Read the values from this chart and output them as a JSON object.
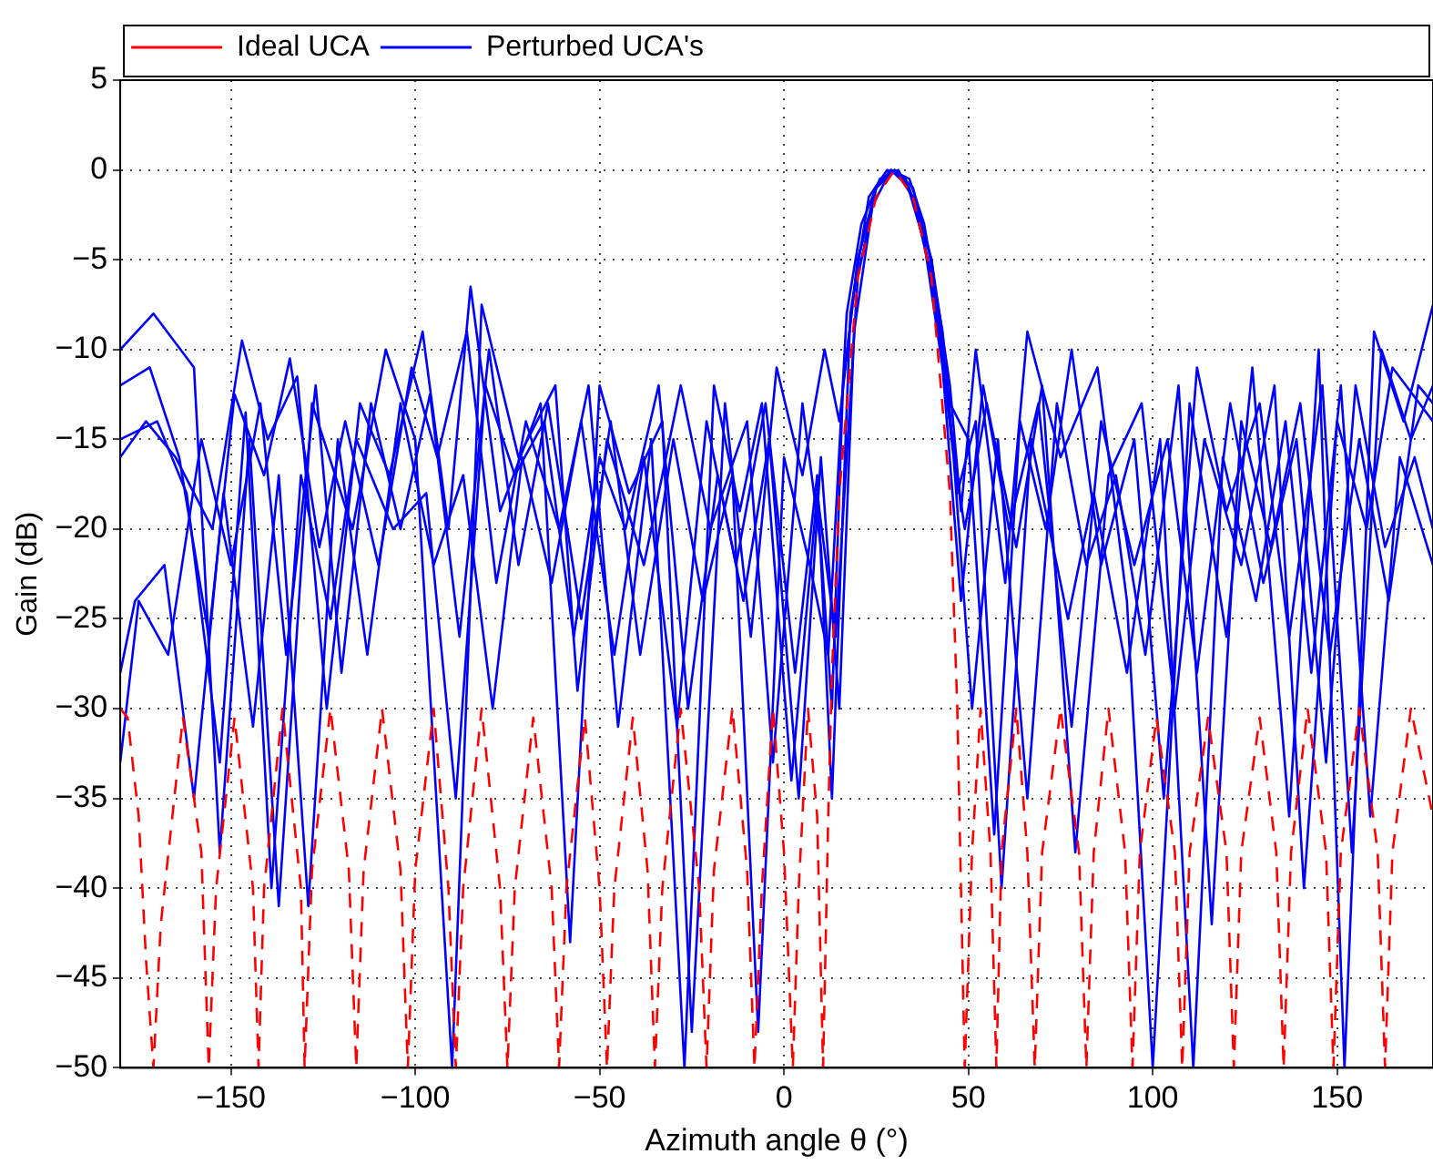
{
  "chart_data": {
    "type": "line",
    "xlabel": "Azimuth angle θ (°)",
    "ylabel": "Gain (dB)",
    "xlim": [
      -180,
      176
    ],
    "ylim": [
      -50,
      5
    ],
    "xticks": [
      {
        "value": -150,
        "label": "−150"
      },
      {
        "value": -100,
        "label": "−100"
      },
      {
        "value": -50,
        "label": "−50"
      },
      0,
      50,
      100,
      150
    ],
    "yticks": [
      {
        "value": -50,
        "label": "−50"
      },
      {
        "value": -45,
        "label": "−45"
      },
      {
        "value": -40,
        "label": "−40"
      },
      {
        "value": -35,
        "label": "−35"
      },
      {
        "value": -30,
        "label": "−30"
      },
      {
        "value": -25,
        "label": "−25"
      },
      {
        "value": -20,
        "label": "−20"
      },
      {
        "value": -15,
        "label": "−15"
      },
      {
        "value": -10,
        "label": "−10"
      },
      {
        "value": -5,
        "label": "−5"
      },
      0,
      5
    ],
    "grid": true,
    "legend": "top left",
    "marker": "none",
    "series": [
      {
        "name": "Ideal UCA",
        "color": "#ff0000",
        "line_style": "dashed",
        "x": [
          -180,
          -178,
          -175,
          -173,
          -171,
          -169,
          -163,
          -158,
          -156,
          -154,
          -149,
          -144,
          -142.5,
          -141,
          -136,
          -131,
          -130,
          -128,
          -123,
          -118,
          -116,
          -114,
          -109,
          -104,
          -102,
          -100,
          -95,
          -91,
          -89,
          -87,
          -82,
          -77,
          -75,
          -73,
          -68,
          -63,
          -61,
          -59,
          -54,
          -50,
          -48,
          -46,
          -41,
          -37,
          -35,
          -33,
          -28,
          -23,
          -21,
          -19,
          -14,
          -10,
          -8,
          -6,
          -3,
          0,
          2.4,
          4,
          6.5,
          9,
          10.6,
          12,
          13,
          15,
          20,
          25,
          30,
          35,
          40,
          45,
          47,
          49,
          51,
          53.3,
          56,
          57.6,
          59,
          63,
          66,
          68,
          70,
          75,
          80,
          82,
          84,
          88,
          92.5,
          94.5,
          96.5,
          101,
          106,
          108,
          110,
          115,
          120,
          122,
          124,
          129,
          133.5,
          135.5,
          137.5,
          142,
          147,
          149,
          151,
          156,
          161,
          163,
          165,
          170,
          176
        ],
        "values": [
          -30,
          -30.5,
          -36,
          -44,
          -50,
          -42,
          -30.5,
          -38,
          -50,
          -40,
          -30.5,
          -40,
          -50,
          -40,
          -30,
          -40,
          -50,
          -39,
          -30,
          -39,
          -50,
          -39,
          -30,
          -39,
          -50,
          -39,
          -30,
          -40,
          -50,
          -40,
          -30,
          -40,
          -50,
          -40,
          -30.5,
          -40,
          -50,
          -40,
          -30.5,
          -40,
          -50,
          -40,
          -30.5,
          -39,
          -50,
          -40,
          -30,
          -40,
          -50,
          -39,
          -30,
          -39,
          -50,
          -40,
          -30,
          -38,
          -50,
          -40,
          -30,
          -36,
          -50,
          -36,
          -28,
          -18,
          -6,
          -1.5,
          0,
          -1.5,
          -6,
          -18,
          -30,
          -50,
          -38,
          -30,
          -38,
          -50,
          -38,
          -30,
          -38,
          -50,
          -38,
          -30,
          -38,
          -50,
          -38,
          -30,
          -38,
          -50,
          -38,
          -30.5,
          -38,
          -50,
          -38,
          -30.5,
          -38,
          -50,
          -38,
          -30.5,
          -38,
          -50,
          -38,
          -30,
          -38,
          -50,
          -38,
          -30,
          -38,
          -50,
          -38,
          -30,
          -36
        ]
      },
      {
        "name": "Perturbed UCA's",
        "color": "#0000ff",
        "line_style": "solid",
        "x": [
          -180,
          -171,
          -160,
          -153,
          -145,
          -137,
          -128,
          -117,
          -108,
          -100,
          -90,
          -82,
          -72,
          -62,
          -56,
          -48,
          -38,
          -28,
          -20,
          -10,
          -3,
          5,
          10,
          13,
          16,
          20,
          25,
          30,
          35,
          40,
          45,
          48,
          52,
          60,
          66,
          75,
          85,
          93,
          100,
          110,
          120,
          127,
          137,
          145,
          152,
          160,
          168,
          176
        ],
        "values": [
          -10,
          -8,
          -11,
          -38,
          -15,
          -41,
          -13,
          -20,
          -10,
          -15,
          -50,
          -7.5,
          -16,
          -12,
          -29,
          -15,
          -22,
          -12,
          -20,
          -14,
          -33,
          -13,
          -21,
          -30,
          -12,
          -5,
          -1,
          0,
          -1,
          -5,
          -12,
          -19,
          -10,
          -23,
          -9,
          -16,
          -11,
          -24,
          -50,
          -13,
          -26,
          -11,
          -36,
          -10,
          -50,
          -9,
          -14,
          -7.5
        ]
      },
      {
        "name": null,
        "color": "#0000ff",
        "line_style": "solid",
        "x": [
          -180,
          -173,
          -165,
          -155,
          -147,
          -140,
          -132,
          -124,
          -115,
          -107,
          -98,
          -91,
          -85,
          -77,
          -66,
          -58,
          -50,
          -42,
          -33,
          -25,
          -16,
          -9,
          -2,
          5,
          11,
          15,
          20,
          25,
          30,
          35,
          40,
          45,
          49,
          55,
          63,
          70,
          79,
          88,
          97,
          106,
          114,
          124,
          133,
          141,
          150,
          158,
          165,
          176
        ],
        "values": [
          -16,
          -14,
          -16,
          -20,
          -9.5,
          -15,
          -11.5,
          -30,
          -13,
          -17,
          -9,
          -20,
          -6.5,
          -19,
          -13,
          -43,
          -12,
          -18,
          -14,
          -48,
          -13,
          -26,
          -11,
          -17,
          -10,
          -14,
          -5,
          -1,
          0,
          -1.5,
          -6,
          -14,
          -20,
          -13,
          -21,
          -12,
          -38,
          -17,
          -13,
          -30,
          -15,
          -22,
          -12,
          -40,
          -14,
          -20,
          -11,
          -14
        ]
      },
      {
        "name": null,
        "color": "#0000ff",
        "line_style": "solid",
        "x": [
          -180,
          -172,
          -164,
          -156,
          -149,
          -141,
          -134,
          -126,
          -119,
          -110,
          -101,
          -94,
          -86,
          -78,
          -70,
          -61,
          -53,
          -45,
          -36,
          -27,
          -19,
          -12,
          -6,
          2,
          9,
          14,
          20,
          25,
          29,
          34,
          40,
          45,
          50,
          57,
          64,
          71,
          78,
          86,
          95,
          103,
          112,
          120,
          129,
          137,
          146,
          154,
          162,
          170,
          176
        ],
        "values": [
          -12,
          -11,
          -16,
          -26,
          -12.5,
          -17,
          -10.5,
          -21,
          -14,
          -22,
          -11,
          -16,
          -9,
          -23,
          -14,
          -20,
          -12,
          -31,
          -15,
          -50,
          -12,
          -19,
          -13,
          -34,
          -18,
          -26,
          -6,
          -1,
          0,
          -1,
          -5,
          -13,
          -15,
          -37,
          -14,
          -20,
          -10,
          -22,
          -15,
          -35,
          -11,
          -19,
          -13,
          -26,
          -12,
          -38,
          -10,
          -15,
          -12
        ]
      },
      {
        "name": null,
        "color": "#0000ff",
        "line_style": "solid",
        "x": [
          -180,
          -175,
          -167,
          -158,
          -150,
          -142,
          -135,
          -127,
          -120,
          -112,
          -104,
          -96,
          -88,
          -80,
          -72,
          -64,
          -55,
          -47,
          -39,
          -30,
          -22,
          -14,
          -7,
          0,
          7,
          12,
          17,
          21,
          26,
          31,
          36,
          41,
          46,
          51,
          58,
          66,
          74,
          82,
          90,
          98,
          107,
          116,
          124,
          132,
          140,
          148,
          156,
          164,
          172,
          176
        ],
        "values": [
          -33,
          -24,
          -27,
          -15,
          -22,
          -13,
          -27,
          -12,
          -28,
          -13,
          -20,
          -12.5,
          -26,
          -10,
          -22,
          -13,
          -25,
          -14,
          -27,
          -15,
          -24,
          -17,
          -48,
          -16,
          -22,
          -27,
          -8,
          -3,
          -0.5,
          0,
          -2,
          -7,
          -16,
          -30,
          -15,
          -35,
          -13,
          -22,
          -17,
          -27,
          -12,
          -42,
          -14,
          -21,
          -13,
          -27,
          -15,
          -24,
          -12,
          -13
        ]
      },
      {
        "name": null,
        "color": "#0000ff",
        "line_style": "solid",
        "x": [
          -180,
          -170,
          -162,
          -153,
          -146,
          -139,
          -131,
          -123,
          -116,
          -106,
          -97,
          -89,
          -81,
          -73,
          -65,
          -57,
          -50,
          -43,
          -34,
          -26,
          -18,
          -11,
          -4,
          4,
          10,
          15,
          19,
          24,
          29,
          34,
          38,
          43,
          47,
          52,
          59,
          67,
          77,
          84,
          93,
          102,
          111,
          119,
          128,
          136,
          143,
          151,
          159,
          167,
          176
        ],
        "values": [
          -15,
          -14,
          -18,
          -33,
          -13.5,
          -40,
          -17,
          -25,
          -15,
          -20,
          -18,
          -35,
          -12,
          -17,
          -14,
          -26,
          -16,
          -20,
          -12,
          -30,
          -17,
          -24,
          -15,
          -35,
          -16,
          -30,
          -9,
          -2,
          0,
          -0.5,
          -3,
          -9,
          -18,
          -14,
          -40,
          -15,
          -25,
          -18,
          -28,
          -15,
          -50,
          -16,
          -24,
          -14,
          -28,
          -12,
          -36,
          -16,
          -22
        ]
      },
      {
        "name": null,
        "color": "#0000ff",
        "line_style": "solid",
        "x": [
          -180,
          -176,
          -168,
          -160,
          -152,
          -144,
          -137,
          -129,
          -121,
          -113,
          -104,
          -95,
          -87,
          -79,
          -71,
          -63,
          -55,
          -46,
          -38,
          -29,
          -21,
          -13,
          -5,
          3,
          9,
          13,
          18,
          23,
          28,
          33,
          38,
          43,
          48,
          54,
          61,
          69,
          78,
          86,
          95,
          104,
          112,
          121,
          130,
          139,
          147,
          155,
          163,
          171,
          176
        ],
        "values": [
          -28,
          -24,
          -22,
          -35,
          -18,
          -31,
          -17,
          -41,
          -15,
          -27,
          -13,
          -22,
          -17,
          -30,
          -16,
          -23,
          -14,
          -27,
          -16,
          -31,
          -14,
          -22,
          -13,
          -28,
          -17,
          -35,
          -8,
          -1.5,
          0,
          -0.5,
          -4,
          -11,
          -24,
          -12,
          -20,
          -13,
          -31,
          -14,
          -22,
          -15,
          -28,
          -13,
          -23,
          -15,
          -33,
          -12,
          -21,
          -16,
          -20
        ]
      }
    ]
  }
}
